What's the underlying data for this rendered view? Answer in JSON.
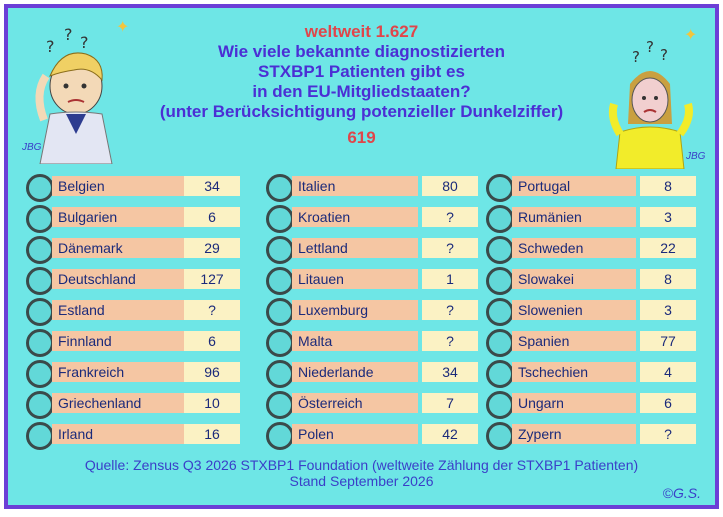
{
  "header": {
    "worldwide": "weltweit 1.627",
    "question_lines": [
      "Wie viele bekannte diagnostizierten",
      "STXBP1 Patienten gibt es",
      "in den EU-Mitgliedstaaten?",
      "(unter Berücksichtigung potenzieller Dunkelziffer)"
    ],
    "eu_total": "619"
  },
  "columns": [
    [
      {
        "country": "Belgien",
        "count": "34"
      },
      {
        "country": "Bulgarien",
        "count": "6"
      },
      {
        "country": "Dänemark",
        "count": "29"
      },
      {
        "country": "Deutschland",
        "count": "127"
      },
      {
        "country": "Estland",
        "count": "?"
      },
      {
        "country": "Finnland",
        "count": "6"
      },
      {
        "country": "Frankreich",
        "count": "96"
      },
      {
        "country": "Griechenland",
        "count": "10"
      },
      {
        "country": "Irland",
        "count": "16"
      }
    ],
    [
      {
        "country": "Italien",
        "count": "80"
      },
      {
        "country": "Kroatien",
        "count": "?"
      },
      {
        "country": "Lettland",
        "count": "?"
      },
      {
        "country": "Litauen",
        "count": "1"
      },
      {
        "country": "Luxemburg",
        "count": "?"
      },
      {
        "country": "Malta",
        "count": "?"
      },
      {
        "country": "Niederlande",
        "count": "34"
      },
      {
        "country": "Österreich",
        "count": "7"
      },
      {
        "country": "Polen",
        "count": "42"
      }
    ],
    [
      {
        "country": "Portugal",
        "count": "8"
      },
      {
        "country": "Rumänien",
        "count": "3"
      },
      {
        "country": "Schweden",
        "count": "22"
      },
      {
        "country": "Slowakei",
        "count": "8"
      },
      {
        "country": "Slowenien",
        "count": "3"
      },
      {
        "country": "Spanien",
        "count": "77"
      },
      {
        "country": "Tschechien",
        "count": "4"
      },
      {
        "country": "Ungarn",
        "count": "6"
      },
      {
        "country": "Zypern",
        "count": "?"
      }
    ]
  ],
  "footer": {
    "source": "Quelle: Zensus Q3 2026 STXBP1 Foundation (weltweite Zählung der STXBP1 Patienten)",
    "date": "Stand September 2026"
  },
  "copyright": "©G.S.",
  "signature": "JBG"
}
